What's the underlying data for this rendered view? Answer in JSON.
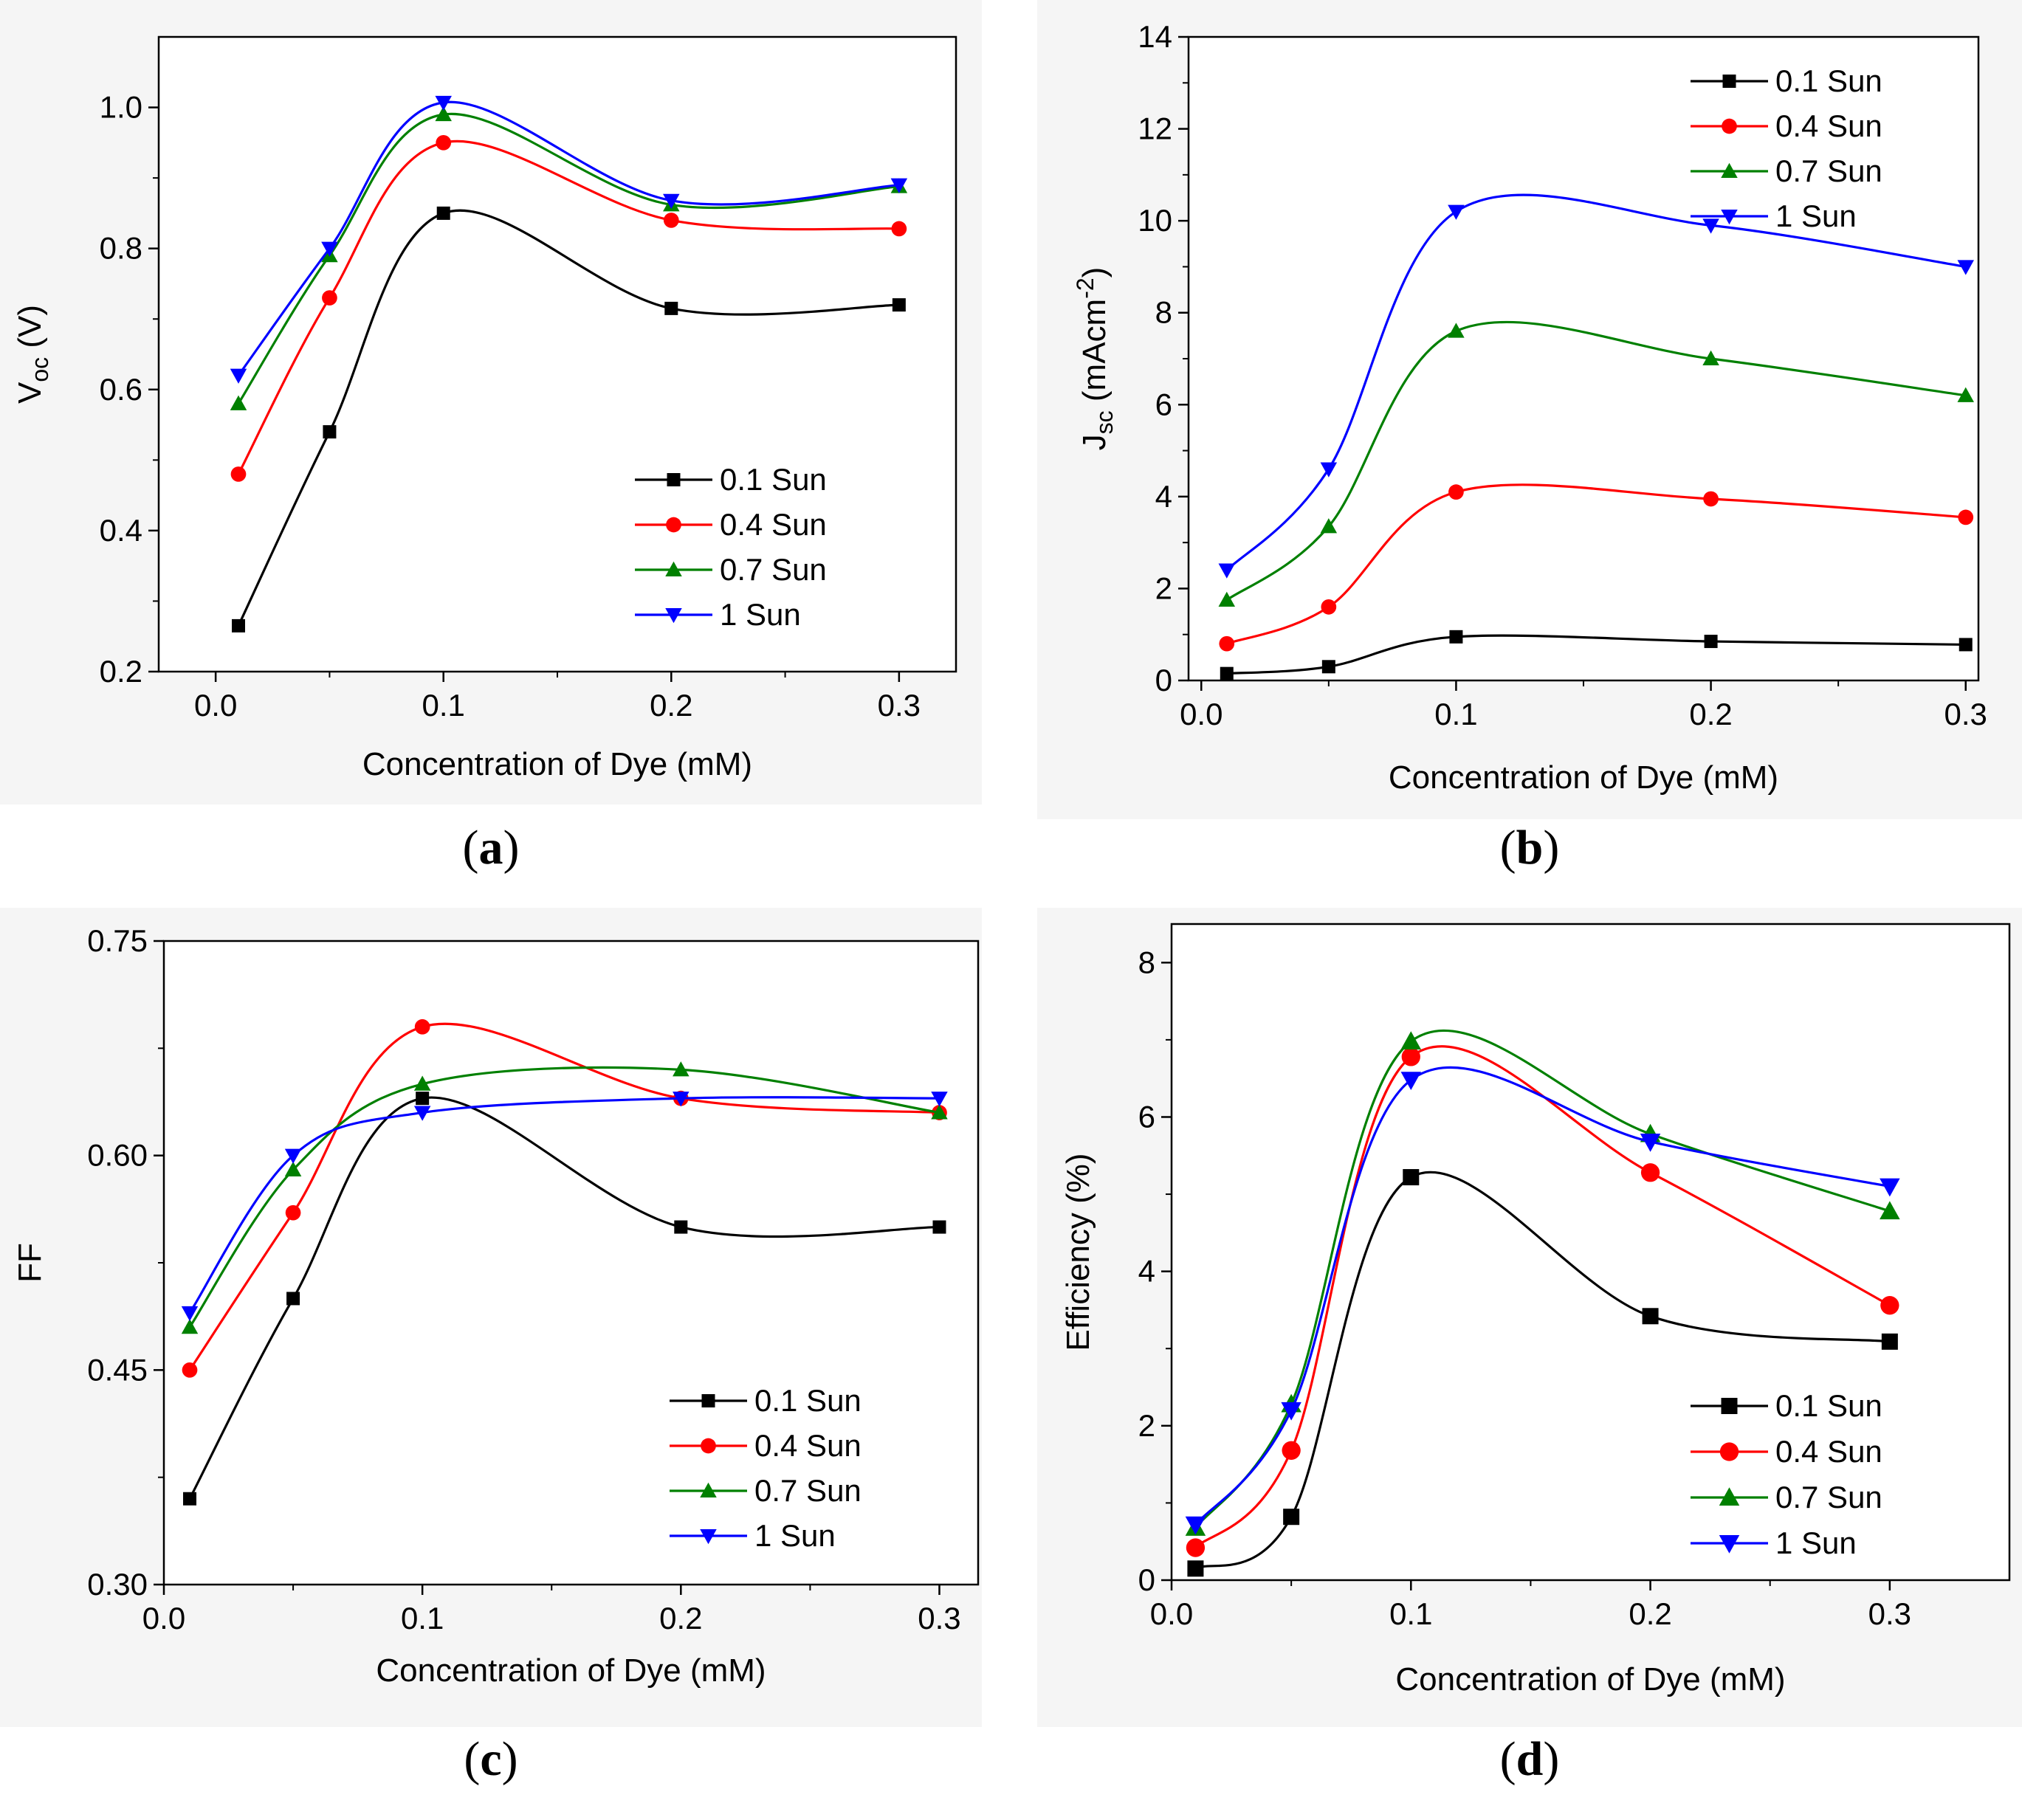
{
  "colors": {
    "s01": "#000000",
    "s04": "#ff0000",
    "s07": "#008000",
    "s1": "#0000ff",
    "panel_bg": "#f5f5f5"
  },
  "chart_data": [
    {
      "type": "line",
      "panel_label": {
        "open": "(",
        "letter": "a",
        "close": ")"
      },
      "xlabel": "Concentration of Dye (mM)",
      "ylabel": {
        "main": "V",
        "sub": "oc",
        "suffix": " (V)"
      },
      "xlim": [
        -0.025,
        0.325
      ],
      "ylim": [
        0.2,
        1.1
      ],
      "xticks": [
        0.0,
        0.1,
        0.2,
        0.3
      ],
      "xtick_labels": [
        "0.0",
        "0.1",
        "0.2",
        "0.3"
      ],
      "yticks": [
        0.2,
        0.4,
        0.6,
        0.8,
        1.0
      ],
      "ytick_labels": [
        "0.2",
        "0.4",
        "0.6",
        "0.8",
        "1.0"
      ],
      "legend_position": "lower-right",
      "x": [
        0.01,
        0.05,
        0.1,
        0.2,
        0.3
      ],
      "series": [
        {
          "name": "0.1 Sun",
          "marker": "square",
          "values": [
            0.265,
            0.54,
            0.85,
            0.715,
            0.72
          ]
        },
        {
          "name": "0.4 Sun",
          "marker": "circle",
          "values": [
            0.48,
            0.73,
            0.95,
            0.84,
            0.828
          ]
        },
        {
          "name": "0.7 Sun",
          "marker": "triangle-up",
          "values": [
            0.58,
            0.79,
            0.99,
            0.862,
            0.888
          ]
        },
        {
          "name": "1 Sun",
          "marker": "triangle-down",
          "values": [
            0.62,
            0.8,
            1.007,
            0.868,
            0.89
          ]
        }
      ]
    },
    {
      "type": "line",
      "panel_label": {
        "open": "(",
        "letter": "b",
        "close": ")"
      },
      "xlabel": "Concentration of Dye (mM)",
      "ylabel": {
        "main": "J",
        "sub": "sc",
        "suffix": " (mAcm",
        "sup": "-2",
        "close": ")"
      },
      "xlim": [
        -0.005,
        0.305
      ],
      "ylim": [
        0,
        14
      ],
      "xticks": [
        0.0,
        0.1,
        0.2,
        0.3
      ],
      "xtick_labels": [
        "0.0",
        "0.1",
        "0.2",
        "0.3"
      ],
      "yticks": [
        0,
        2,
        4,
        6,
        8,
        10,
        12,
        14
      ],
      "ytick_labels": [
        "0",
        "2",
        "4",
        "6",
        "8",
        "10",
        "12",
        "14"
      ],
      "legend_position": "top-right",
      "x": [
        0.01,
        0.05,
        0.1,
        0.2,
        0.3
      ],
      "series": [
        {
          "name": "0.1 Sun",
          "marker": "square",
          "values": [
            0.15,
            0.3,
            0.95,
            0.85,
            0.78
          ]
        },
        {
          "name": "0.4 Sun",
          "marker": "circle",
          "values": [
            0.8,
            1.6,
            4.1,
            3.95,
            3.55
          ]
        },
        {
          "name": "0.7 Sun",
          "marker": "triangle-up",
          "values": [
            1.75,
            3.35,
            7.6,
            7.0,
            6.2
          ]
        },
        {
          "name": "1 Sun",
          "marker": "triangle-down",
          "values": [
            2.4,
            4.6,
            10.2,
            9.9,
            9.0
          ]
        }
      ]
    },
    {
      "type": "line",
      "panel_label": {
        "open": "(",
        "letter": "c",
        "close": ")"
      },
      "xlabel": "Concentration of Dye (mM)",
      "ylabel": {
        "main": "FF",
        "sub": "",
        "suffix": ""
      },
      "xlim": [
        0.0,
        0.315
      ],
      "ylim": [
        0.3,
        0.75
      ],
      "xticks": [
        0.0,
        0.1,
        0.2,
        0.3
      ],
      "xtick_labels": [
        "0.0",
        "0.1",
        "0.2",
        "0.3"
      ],
      "yticks": [
        0.3,
        0.45,
        0.6,
        0.75
      ],
      "ytick_labels": [
        "0.30",
        "0.45",
        "0.60",
        "0.75"
      ],
      "legend_position": "lower-right",
      "x": [
        0.01,
        0.05,
        0.1,
        0.2,
        0.3
      ],
      "series": [
        {
          "name": "0.1 Sun",
          "marker": "square",
          "values": [
            0.36,
            0.5,
            0.64,
            0.55,
            0.55
          ]
        },
        {
          "name": "0.4 Sun",
          "marker": "circle",
          "values": [
            0.45,
            0.56,
            0.69,
            0.64,
            0.63
          ]
        },
        {
          "name": "0.7 Sun",
          "marker": "triangle-up",
          "values": [
            0.48,
            0.59,
            0.65,
            0.66,
            0.63
          ]
        },
        {
          "name": "1 Sun",
          "marker": "triangle-down",
          "values": [
            0.49,
            0.6,
            0.63,
            0.64,
            0.64
          ]
        }
      ]
    },
    {
      "type": "line",
      "panel_label": {
        "open": "(",
        "letter": "d",
        "close": ")"
      },
      "xlabel": "Concentration of Dye (mM)",
      "ylabel": {
        "main": "Efficiency (%)",
        "sub": "",
        "suffix": ""
      },
      "xlim": [
        0.0,
        0.35
      ],
      "ylim": [
        0,
        8.5
      ],
      "xticks": [
        0.0,
        0.1,
        0.2,
        0.3
      ],
      "xtick_labels": [
        "0.0",
        "0.1",
        "0.2",
        "0.3"
      ],
      "yticks": [
        0,
        2,
        4,
        6,
        8
      ],
      "ytick_labels": [
        "0",
        "2",
        "4",
        "6",
        "8"
      ],
      "legend_position": "lower-right",
      "x": [
        0.01,
        0.05,
        0.1,
        0.2,
        0.3
      ],
      "series": [
        {
          "name": "0.1 Sun",
          "marker": "square",
          "values": [
            0.15,
            0.82,
            5.22,
            3.42,
            3.09
          ]
        },
        {
          "name": "0.4 Sun",
          "marker": "circle",
          "values": [
            0.42,
            1.68,
            6.78,
            5.28,
            3.56
          ]
        },
        {
          "name": "0.7 Sun",
          "marker": "triangle-up",
          "values": [
            0.68,
            2.28,
            6.98,
            5.78,
            4.78
          ]
        },
        {
          "name": "1 Sun",
          "marker": "triangle-down",
          "values": [
            0.72,
            2.2,
            6.48,
            5.68,
            5.1
          ]
        }
      ]
    }
  ]
}
